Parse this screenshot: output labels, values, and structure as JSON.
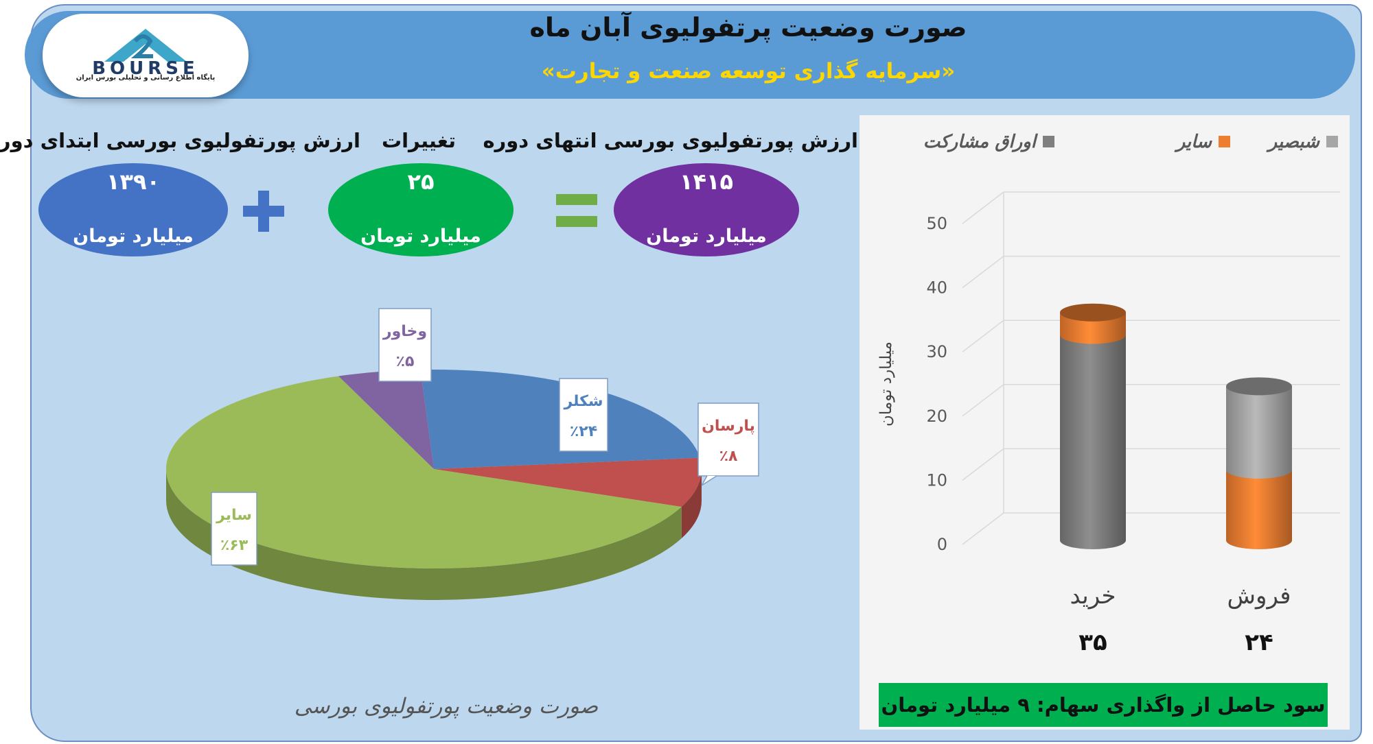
{
  "header": {
    "title": "صورت وضعیت پرتفولیوی آبان ماه",
    "subtitle": "«سرمایه گذاری توسعه صنعت و تجارت»",
    "logo_text": "BOURSE",
    "logo_subtext": "پایگاه اطلاع رسانی و تحلیلی بورس ایران"
  },
  "equation": {
    "start": {
      "label": "ارزش پورتفولیوی بورسی ابتدای دوره",
      "value": "۱۳۹۰",
      "unit": "میلیارد تومان"
    },
    "change": {
      "label": "تغییرات",
      "value": "۲۵",
      "unit": "میلیارد تومان"
    },
    "end": {
      "label": "ارزش پورتفولیوی بورسی انتهای دوره",
      "value": "۱۴۱۵",
      "unit": "میلیارد تومان"
    },
    "plus": "+",
    "equals": "="
  },
  "colors": {
    "header": "#5b9bd5",
    "start_oval": "#4472c4",
    "change_oval": "#00b050",
    "end_oval": "#7030a0",
    "gray_series": "#7f7f7f",
    "orange_series": "#ed7d31"
  },
  "chart_data": [
    {
      "type": "pie",
      "title": "صورت وضعیت پورتفولیوی بورسی",
      "slices": [
        {
          "label": "شکلر",
          "value": 24,
          "value_label": "٪۲۴",
          "color": "#4f81bd"
        },
        {
          "label": "پارسان",
          "value": 8,
          "value_label": "٪۸",
          "color": "#c0504d"
        },
        {
          "label": "سایر",
          "value": 63,
          "value_label": "٪۶۳",
          "color": "#9bbb59"
        },
        {
          "label": "وخاور",
          "value": 5,
          "value_label": "٪۵",
          "color": "#8064a2"
        }
      ]
    },
    {
      "type": "bar",
      "stacked": true,
      "legend": [
        "شبصیر",
        "سایر",
        "اوراق مشارکت"
      ],
      "legend_position": "top",
      "ylabel": "میلیارد تومان",
      "ylim": [
        0,
        50
      ],
      "yticks": [
        "0",
        "10",
        "20",
        "30",
        "40",
        "50"
      ],
      "categories": [
        "خرید",
        "فروش"
      ],
      "totals": [
        "۳۵",
        "۲۴"
      ],
      "series": [
        {
          "name": "اوراق مشارکت",
          "color": "#7f7f7f",
          "values": [
            32,
            0
          ]
        },
        {
          "name": "سایر",
          "color": "#ed7d31",
          "values": [
            3.5,
            11
          ]
        },
        {
          "name": "شبصیر",
          "color": "#a6a6a6",
          "values": [
            0,
            13
          ]
        }
      ]
    }
  ],
  "profit_text": "سود حاصل از واگذاری سهام: ۹ میلیارد تومان"
}
